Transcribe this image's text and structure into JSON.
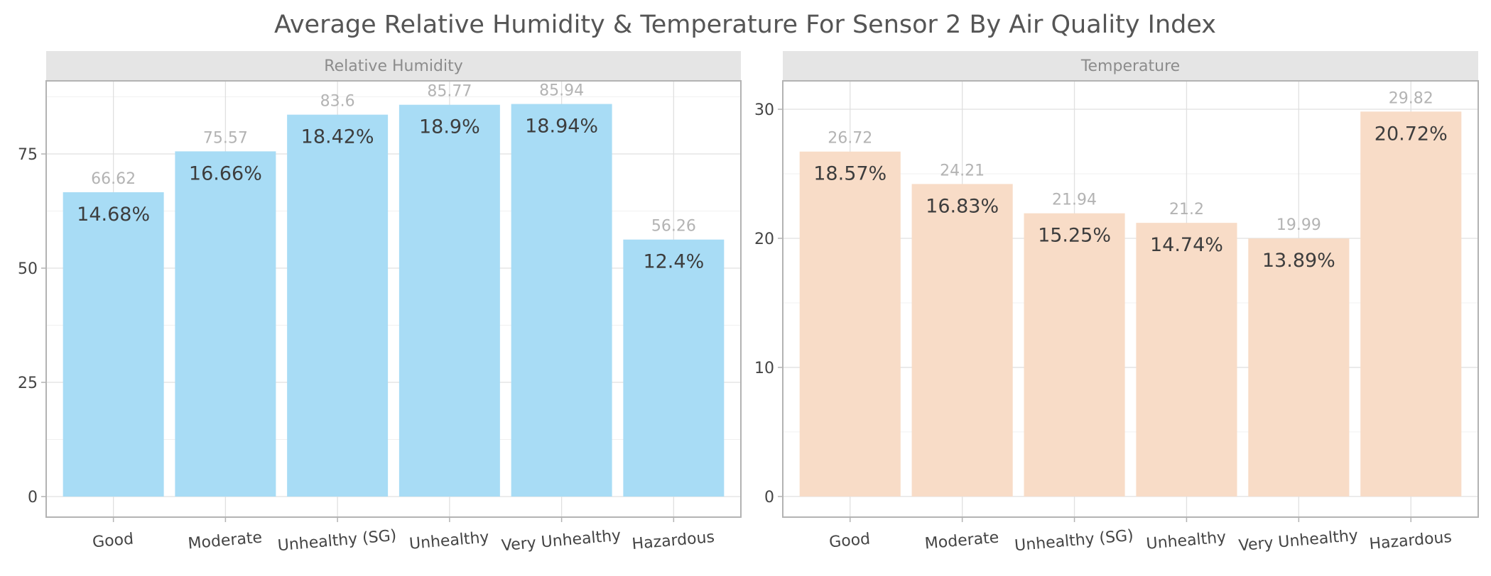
{
  "chart_data": {
    "type": "bar",
    "title": "Average Relative Humidity & Temperature For Sensor 2 By Air Quality Index",
    "categories": [
      "Good",
      "Moderate",
      "Unhealthy (SG)",
      "Unhealthy",
      "Very Unhealthy",
      "Hazardous"
    ],
    "facets": [
      {
        "name": "Relative Humidity",
        "values": [
          66.62,
          75.57,
          83.6,
          85.77,
          85.94,
          56.26
        ],
        "value_labels": [
          "66.62",
          "75.57",
          "83.6",
          "85.77",
          "85.94",
          "56.26"
        ],
        "percent_labels": [
          "14.68%",
          "16.66%",
          "18.42%",
          "18.9%",
          "18.94%",
          "12.4%"
        ],
        "ylim": [
          -4.5,
          91
        ],
        "yticks": [
          0,
          25,
          50,
          75
        ],
        "ytick_labels": [
          "0",
          "25",
          "50",
          "75"
        ],
        "color": "#a8dcf5"
      },
      {
        "name": "Temperature",
        "values": [
          26.72,
          24.21,
          21.94,
          21.2,
          19.99,
          29.82
        ],
        "value_labels": [
          "26.72",
          "24.21",
          "21.94",
          "21.2",
          "19.99",
          "29.82"
        ],
        "percent_labels": [
          "18.57%",
          "16.83%",
          "15.25%",
          "14.74%",
          "13.89%",
          "20.72%"
        ],
        "ylim": [
          -1.6,
          32.2
        ],
        "yticks": [
          0,
          10,
          20,
          30
        ],
        "ytick_labels": [
          "0",
          "10",
          "20",
          "30"
        ],
        "color": "#f8dcc7"
      }
    ],
    "grid": true,
    "legend": "none"
  }
}
